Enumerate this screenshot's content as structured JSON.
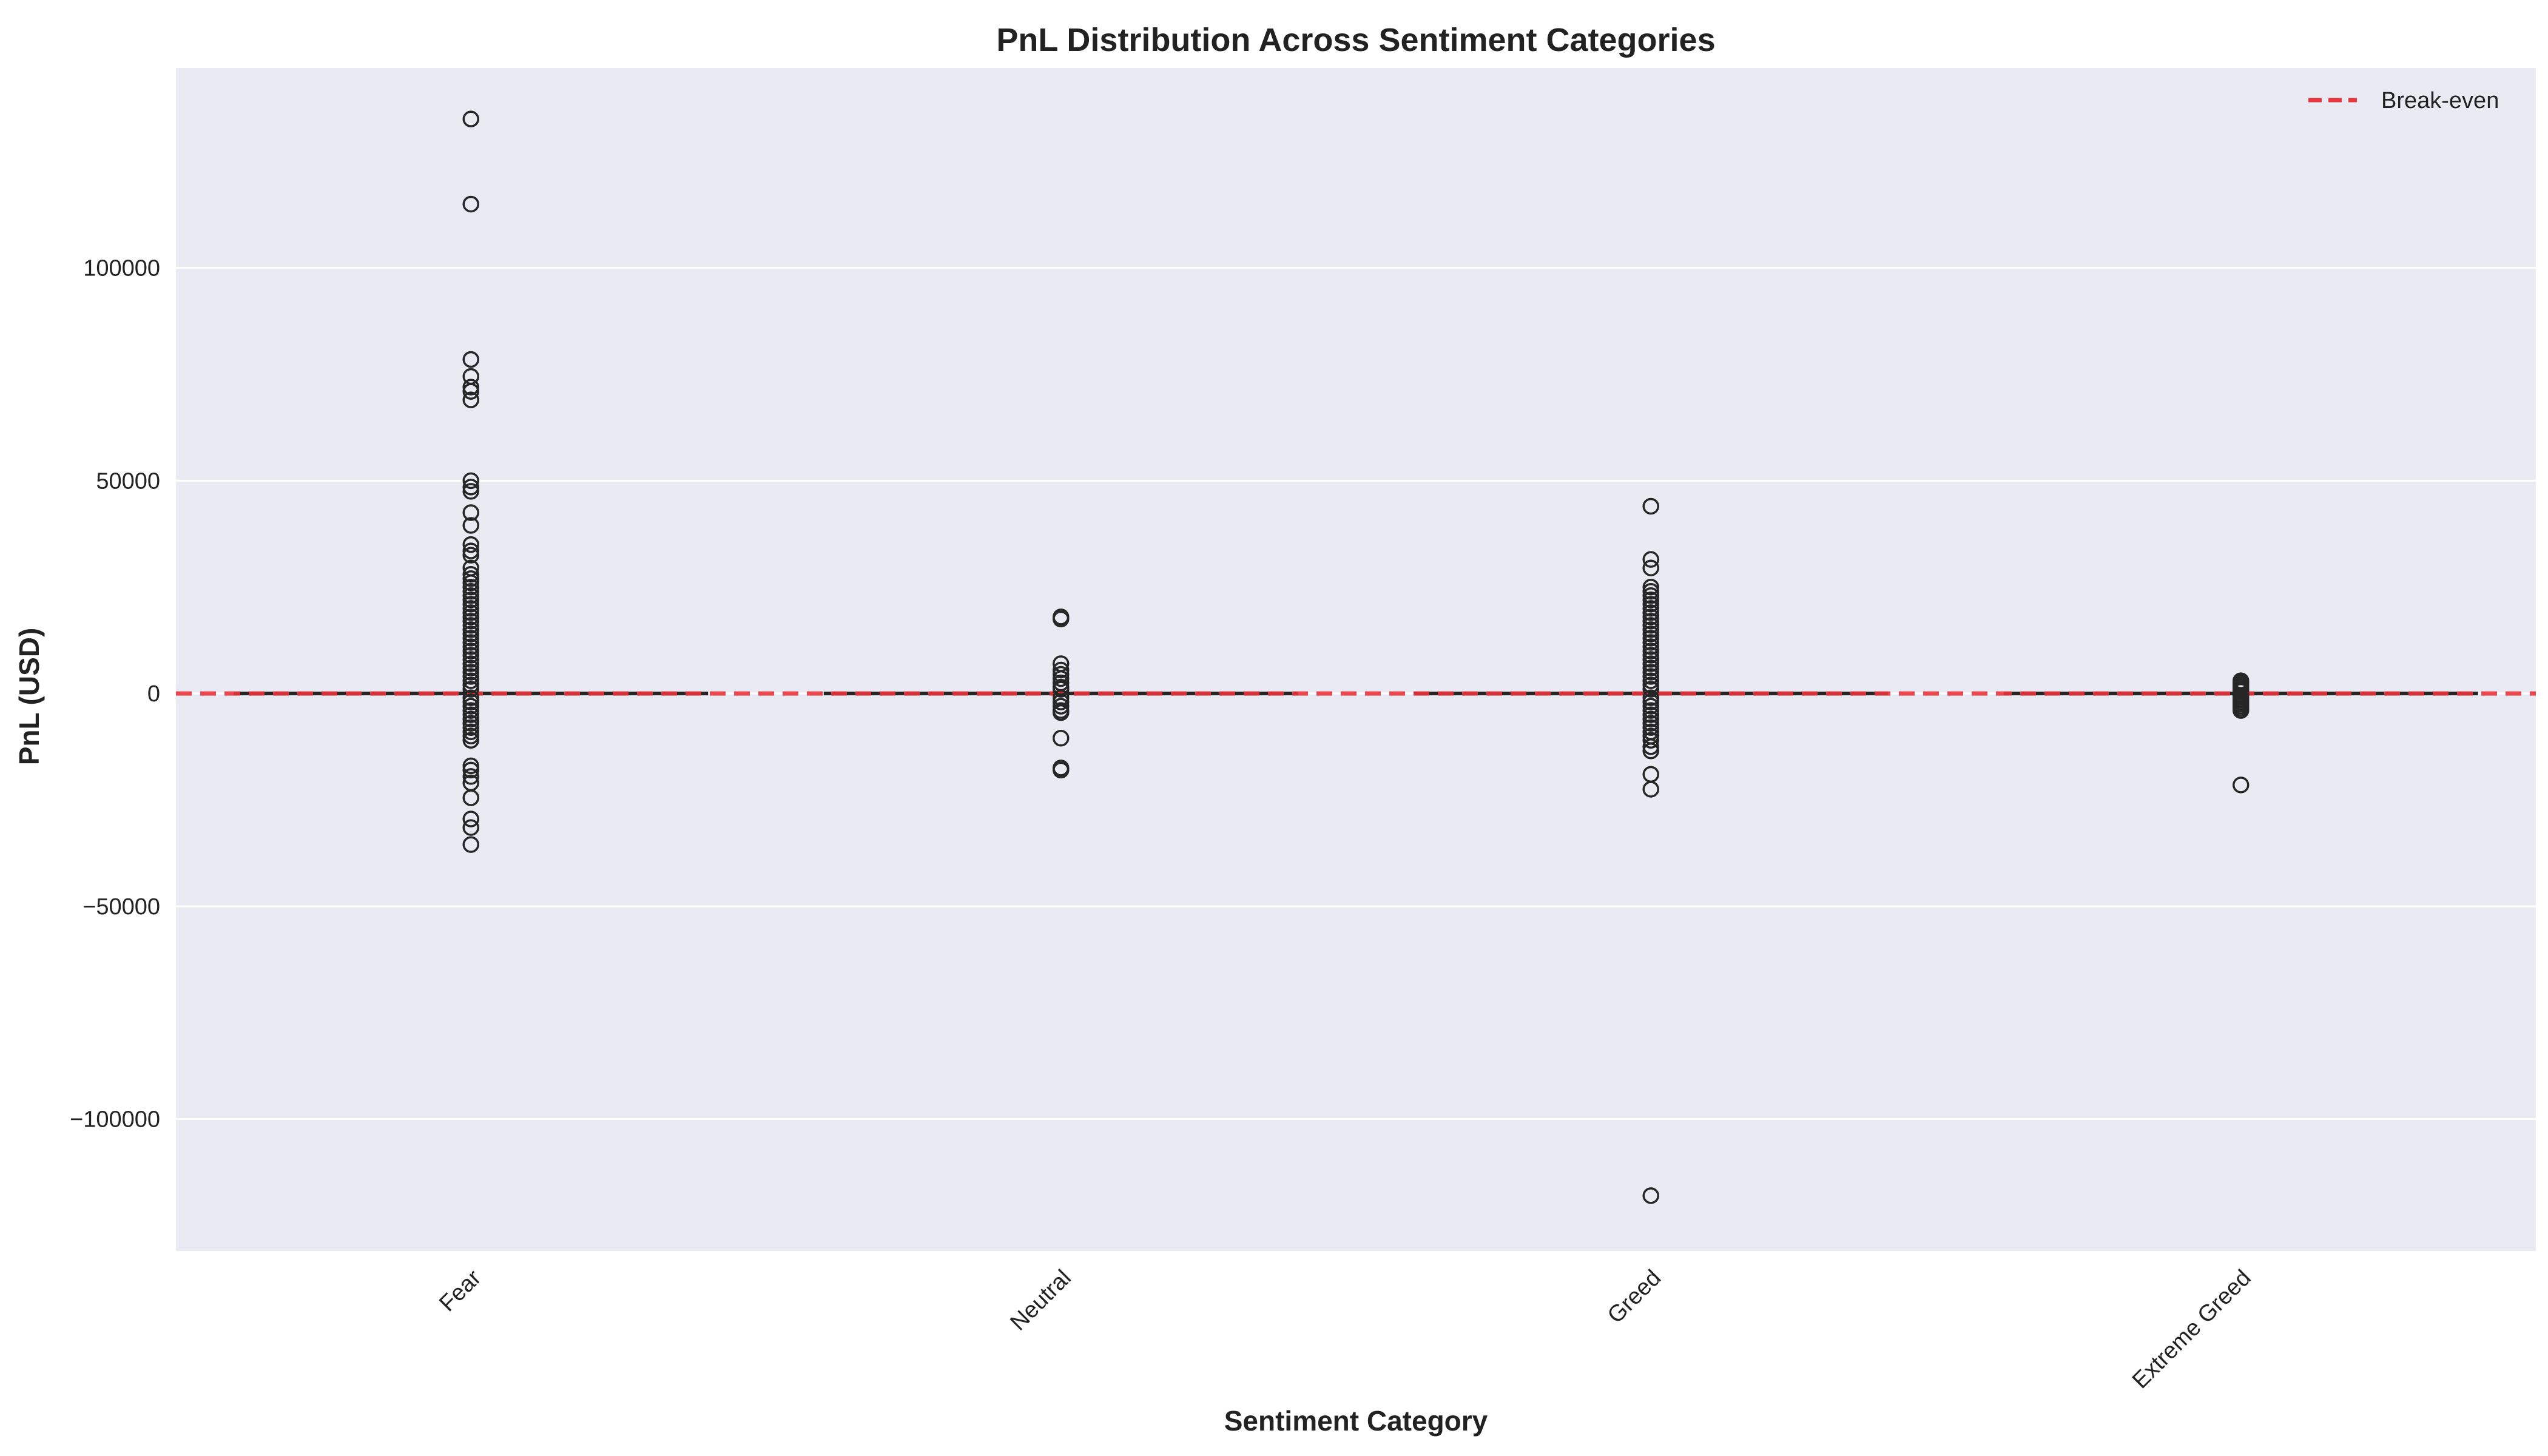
{
  "chart_data": {
    "type": "box",
    "title": "PnL Distribution Across Sentiment Categories",
    "xlabel": "Sentiment Category",
    "ylabel": "PnL (USD)",
    "ylim": [
      -131000,
      147000
    ],
    "yticks": [
      -100000,
      -50000,
      0,
      50000,
      100000
    ],
    "ytick_labels": [
      "−100000",
      "−50000",
      "0",
      "50000",
      "100000"
    ],
    "grid": true,
    "legend_position": "top-right",
    "categories": [
      "Fear",
      "Neutral",
      "Greed",
      "Extreme Greed"
    ],
    "reference_line": {
      "label": "Break-even",
      "y": 0,
      "color": "#e8343c",
      "style": "dashed"
    },
    "series": [
      {
        "category": "Fear",
        "median": 0,
        "q1": 0,
        "q3": 0,
        "whisker_low": 0,
        "whisker_high": 0,
        "outliers": [
          135000,
          115000,
          78500,
          74500,
          72000,
          71000,
          69000,
          50000,
          48500,
          47500,
          42500,
          39500,
          35000,
          33500,
          32500,
          29500,
          28000,
          27000,
          26000,
          25000,
          24000,
          23000,
          22000,
          21000,
          20000,
          19000,
          18000,
          17000,
          16000,
          15000,
          14000,
          13000,
          12000,
          11000,
          10000,
          9000,
          8000,
          7000,
          6000,
          5000,
          4000,
          3000,
          2000,
          1000,
          -1000,
          -2000,
          -3000,
          -4000,
          -5000,
          -6000,
          -7000,
          -8000,
          -9000,
          -10000,
          -11000,
          -17000,
          -18000,
          -19500,
          -21000,
          -24500,
          -29500,
          -31500,
          -35500
        ]
      },
      {
        "category": "Neutral",
        "median": 0,
        "q1": 0,
        "q3": 0,
        "whisker_low": 0,
        "whisker_high": 0,
        "outliers": [
          18000,
          17500,
          7000,
          5500,
          4500,
          3500,
          2500,
          1500,
          1000,
          -1000,
          -2000,
          -3000,
          -4000,
          -4500,
          -10500,
          -17500,
          -18000
        ]
      },
      {
        "category": "Greed",
        "median": 0,
        "q1": 0,
        "q3": 0,
        "whisker_low": 0,
        "whisker_high": 0,
        "outliers": [
          44000,
          31500,
          29500,
          25000,
          24000,
          23000,
          22000,
          21000,
          20000,
          19000,
          18000,
          17000,
          16000,
          15000,
          14000,
          13000,
          12000,
          11000,
          10000,
          9000,
          8000,
          7000,
          6000,
          5000,
          4000,
          3000,
          2000,
          1000,
          -1000,
          -2000,
          -3000,
          -4000,
          -5000,
          -6000,
          -7000,
          -8000,
          -9000,
          -10000,
          -11000,
          -12500,
          -13500,
          -19000,
          -22500,
          -118000
        ]
      },
      {
        "category": "Extreme Greed",
        "median": 0,
        "q1": 0,
        "q3": 0,
        "whisker_low": 0,
        "whisker_high": 0,
        "outliers": [
          3000,
          2500,
          2000,
          1500,
          1000,
          500,
          -500,
          -1000,
          -1500,
          -2000,
          -2500,
          -3000,
          -3500,
          -4000,
          -21500
        ]
      }
    ]
  },
  "colors": {
    "plot_background": "#eaeaf2",
    "grid": "#ffffff",
    "marker_edge": "#262626",
    "box_line": "#262626",
    "reference": "#e8343c",
    "text": "#222222"
  }
}
